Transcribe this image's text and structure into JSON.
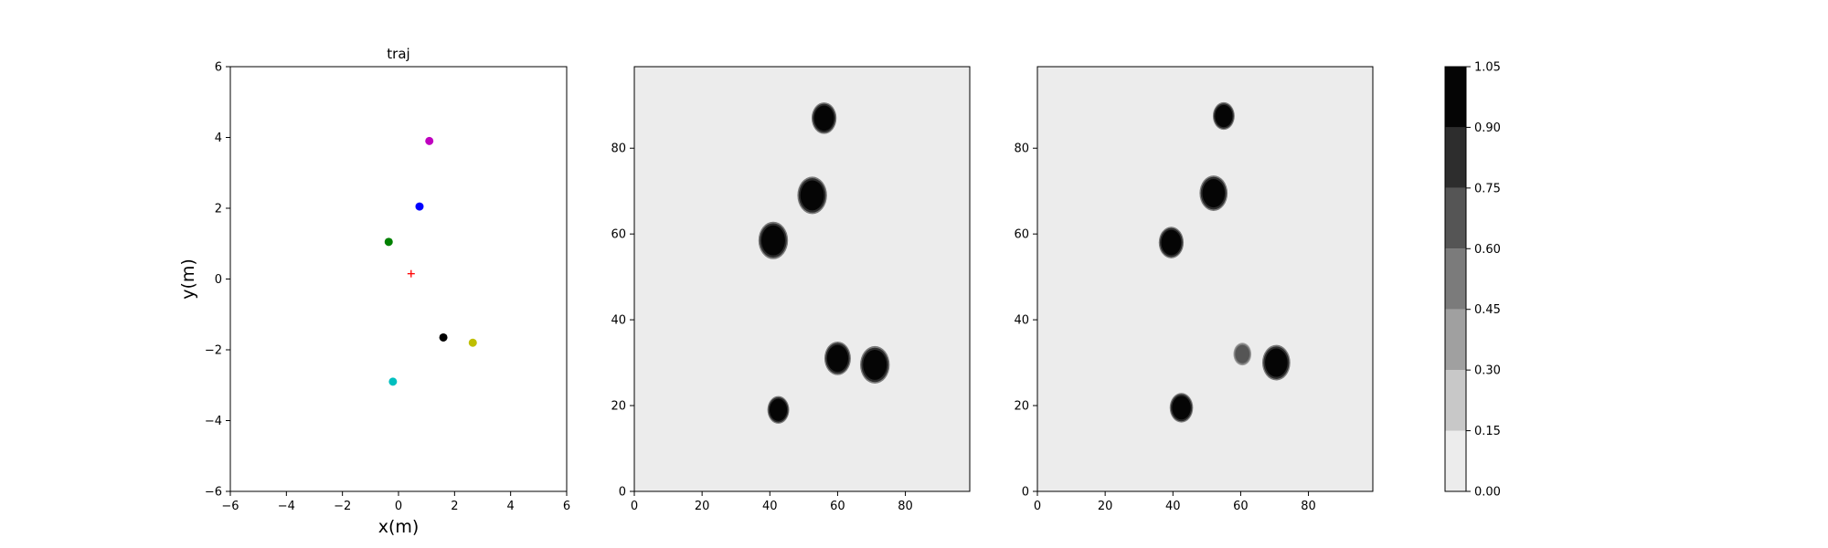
{
  "chart_data": [
    {
      "type": "scatter",
      "title": "traj",
      "xlabel": "x(m)",
      "ylabel": "y(m)",
      "xlim": [
        -6,
        6
      ],
      "ylim": [
        -6,
        6
      ],
      "xticks": [
        "−6",
        "−4",
        "−2",
        "0",
        "2",
        "4",
        "6"
      ],
      "yticks": [
        "−6",
        "−4",
        "−2",
        "0",
        "2",
        "4",
        "6"
      ],
      "grid": false,
      "points": [
        {
          "x": 1.1,
          "y": 3.9,
          "color": "#bf00bf",
          "marker": "circle"
        },
        {
          "x": 0.75,
          "y": 2.05,
          "color": "#0000ff",
          "marker": "circle"
        },
        {
          "x": -0.35,
          "y": 1.05,
          "color": "#008000",
          "marker": "circle"
        },
        {
          "x": 0.45,
          "y": 0.15,
          "color": "#ff0000",
          "marker": "plus"
        },
        {
          "x": 1.6,
          "y": -1.65,
          "color": "#000000",
          "marker": "circle"
        },
        {
          "x": 2.65,
          "y": -1.8,
          "color": "#bfbf00",
          "marker": "circle"
        },
        {
          "x": -0.2,
          "y": -2.9,
          "color": "#00bfbf",
          "marker": "circle"
        }
      ]
    },
    {
      "type": "heatmap",
      "xlim": [
        0,
        99
      ],
      "ylim": [
        0,
        99
      ],
      "xticks": [
        "0",
        "20",
        "40",
        "60",
        "80"
      ],
      "yticks": [
        "0",
        "20",
        "40",
        "60",
        "80"
      ],
      "background_level": 0.0,
      "blobs": [
        {
          "x": 56,
          "y": 87,
          "r": 3.2,
          "level": 1.0
        },
        {
          "x": 52.5,
          "y": 69,
          "r": 3.8,
          "level": 1.0
        },
        {
          "x": 41,
          "y": 58.5,
          "r": 3.8,
          "level": 1.0
        },
        {
          "x": 60,
          "y": 31,
          "r": 3.4,
          "level": 1.0
        },
        {
          "x": 71,
          "y": 29.5,
          "r": 3.8,
          "level": 1.0
        },
        {
          "x": 42.5,
          "y": 19,
          "r": 2.8,
          "level": 1.0
        }
      ]
    },
    {
      "type": "heatmap",
      "xlim": [
        0,
        99
      ],
      "ylim": [
        0,
        99
      ],
      "xticks": [
        "0",
        "20",
        "40",
        "60",
        "80"
      ],
      "yticks": [
        "0",
        "20",
        "40",
        "60",
        "80"
      ],
      "background_level": 0.0,
      "blobs": [
        {
          "x": 55,
          "y": 87.5,
          "r": 2.8,
          "level": 1.0
        },
        {
          "x": 52,
          "y": 69.5,
          "r": 3.6,
          "level": 1.0
        },
        {
          "x": 39.5,
          "y": 58,
          "r": 3.2,
          "level": 1.0
        },
        {
          "x": 60.5,
          "y": 32,
          "r": 2.3,
          "level": 0.7
        },
        {
          "x": 70.5,
          "y": 30,
          "r": 3.6,
          "level": 1.0
        },
        {
          "x": 42.5,
          "y": 19.5,
          "r": 3.0,
          "level": 1.0
        }
      ]
    }
  ],
  "colorbar": {
    "range": [
      0.0,
      1.05
    ],
    "ticks": [
      "0.00",
      "0.15",
      "0.30",
      "0.45",
      "0.60",
      "0.75",
      "0.90",
      "1.05"
    ],
    "colors": [
      "#ececec",
      "#c8c8c8",
      "#a0a0a0",
      "#7b7b7b",
      "#555555",
      "#2d2d2d",
      "#050505"
    ]
  }
}
